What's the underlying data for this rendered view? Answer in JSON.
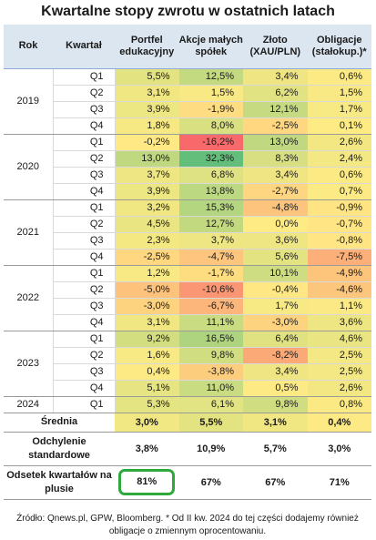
{
  "title": "Kwartalne stopy zwrotu w ostatnich latach",
  "source": "Źródło: Qnews.pl, GPW, Bloomberg. * Od II kw. 2024 do tej części dodajemy również obligacje o zmiennym oprocentowaniu.",
  "colors": {
    "header_bg": "#dce6f1",
    "highlight_border": "#2eaa3c",
    "scale_low": "#f8696b",
    "scale_mid": "#ffeb84",
    "scale_high": "#63be7b"
  },
  "chart_data": {
    "type": "table",
    "title": "Kwartalne stopy zwrotu w ostatnich latach",
    "columns": [
      "Rok",
      "Kwartał",
      "Portfel edukacyjny",
      "Akcje małych spółek",
      "Złoto (XAU/PLN)",
      "Obligacje (stałokup.)*"
    ],
    "rows": [
      {
        "year": "2019",
        "quarter": "Q1",
        "values": [
          "5,5%",
          "12,5%",
          "3,4%",
          "0,6%"
        ],
        "nums": [
          5.5,
          12.5,
          3.4,
          0.6
        ]
      },
      {
        "year": "",
        "quarter": "Q2",
        "values": [
          "3,1%",
          "1,5%",
          "6,2%",
          "1,5%"
        ],
        "nums": [
          3.1,
          1.5,
          6.2,
          1.5
        ]
      },
      {
        "year": "",
        "quarter": "Q3",
        "values": [
          "3,9%",
          "-1,9%",
          "12,1%",
          "1,7%"
        ],
        "nums": [
          3.9,
          -1.9,
          12.1,
          1.7
        ]
      },
      {
        "year": "",
        "quarter": "Q4",
        "values": [
          "1,8%",
          "8,0%",
          "-2,5%",
          "0,1%"
        ],
        "nums": [
          1.8,
          8.0,
          -2.5,
          0.1
        ]
      },
      {
        "year": "2020",
        "quarter": "Q1",
        "values": [
          "-0,2%",
          "-16,2%",
          "13,0%",
          "2,6%"
        ],
        "nums": [
          -0.2,
          -16.2,
          13.0,
          2.6
        ]
      },
      {
        "year": "",
        "quarter": "Q2",
        "values": [
          "13,0%",
          "32,3%",
          "8,3%",
          "2,4%"
        ],
        "nums": [
          13.0,
          32.3,
          8.3,
          2.4
        ]
      },
      {
        "year": "",
        "quarter": "Q3",
        "values": [
          "3,7%",
          "6,8%",
          "3,4%",
          "0,6%"
        ],
        "nums": [
          3.7,
          6.8,
          3.4,
          0.6
        ]
      },
      {
        "year": "",
        "quarter": "Q4",
        "values": [
          "3,9%",
          "13,8%",
          "-2,7%",
          "0,7%"
        ],
        "nums": [
          3.9,
          13.8,
          -2.7,
          0.7
        ]
      },
      {
        "year": "2021",
        "quarter": "Q1",
        "values": [
          "3,2%",
          "15,3%",
          "-4,8%",
          "-0,9%"
        ],
        "nums": [
          3.2,
          15.3,
          -4.8,
          -0.9
        ]
      },
      {
        "year": "",
        "quarter": "Q2",
        "values": [
          "4,5%",
          "12,7%",
          "0,0%",
          "-0,7%"
        ],
        "nums": [
          4.5,
          12.7,
          0.0,
          -0.7
        ]
      },
      {
        "year": "",
        "quarter": "Q3",
        "values": [
          "2,3%",
          "3,7%",
          "3,6%",
          "-0,8%"
        ],
        "nums": [
          2.3,
          3.7,
          3.6,
          -0.8
        ]
      },
      {
        "year": "",
        "quarter": "Q4",
        "values": [
          "-2,5%",
          "-4,7%",
          "5,6%",
          "-7,5%"
        ],
        "nums": [
          -2.5,
          -4.7,
          5.6,
          -7.5
        ]
      },
      {
        "year": "2022",
        "quarter": "Q1",
        "values": [
          "1,2%",
          "-1,7%",
          "10,1%",
          "-4,9%"
        ],
        "nums": [
          1.2,
          -1.7,
          10.1,
          -4.9
        ]
      },
      {
        "year": "",
        "quarter": "Q2",
        "values": [
          "-5,0%",
          "-10,6%",
          "-0,4%",
          "-4,6%"
        ],
        "nums": [
          -5.0,
          -10.6,
          -0.4,
          -4.6
        ]
      },
      {
        "year": "",
        "quarter": "Q3",
        "values": [
          "-3,0%",
          "-6,7%",
          "1,7%",
          "1,1%"
        ],
        "nums": [
          -3.0,
          -6.7,
          1.7,
          1.1
        ]
      },
      {
        "year": "",
        "quarter": "Q4",
        "values": [
          "3,1%",
          "11,1%",
          "-3,0%",
          "3,6%"
        ],
        "nums": [
          3.1,
          11.1,
          -3.0,
          3.6
        ]
      },
      {
        "year": "2023",
        "quarter": "Q1",
        "values": [
          "9,2%",
          "16,5%",
          "6,4%",
          "4,6%"
        ],
        "nums": [
          9.2,
          16.5,
          6.4,
          4.6
        ]
      },
      {
        "year": "",
        "quarter": "Q2",
        "values": [
          "1,6%",
          "9,8%",
          "-8,2%",
          "2,5%"
        ],
        "nums": [
          1.6,
          9.8,
          -8.2,
          2.5
        ]
      },
      {
        "year": "",
        "quarter": "Q3",
        "values": [
          "0,4%",
          "-3,8%",
          "3,4%",
          "2,5%"
        ],
        "nums": [
          0.4,
          -3.8,
          3.4,
          2.5
        ]
      },
      {
        "year": "",
        "quarter": "Q4",
        "values": [
          "5,1%",
          "11,0%",
          "0,5%",
          "2,6%"
        ],
        "nums": [
          5.1,
          11.0,
          0.5,
          2.6
        ]
      },
      {
        "year": "2024",
        "quarter": "Q1",
        "values": [
          "5,3%",
          "6,1%",
          "9,8%",
          "0,8%"
        ],
        "nums": [
          5.3,
          6.1,
          9.8,
          0.8
        ]
      }
    ],
    "summary": [
      {
        "label": "Średnia",
        "values": [
          "3,0%",
          "5,5%",
          "3,1%",
          "0,4%"
        ],
        "nums": [
          3.0,
          5.5,
          3.1,
          0.4
        ],
        "colored": true
      },
      {
        "label": "Odchylenie standardowe",
        "values": [
          "3,8%",
          "10,9%",
          "5,7%",
          "3,0%"
        ],
        "colored": false
      },
      {
        "label": "Odsetek kwartałów na plusie",
        "values": [
          "81%",
          "67%",
          "67%",
          "71%"
        ],
        "colored": false,
        "highlight_index": 0
      }
    ]
  }
}
